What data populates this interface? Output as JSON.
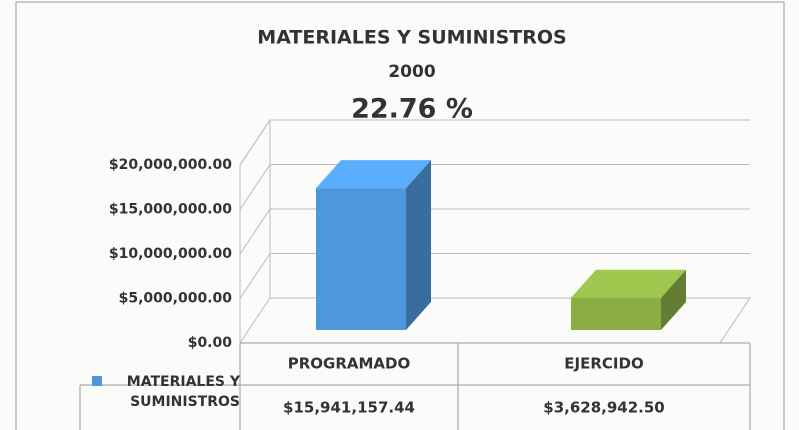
{
  "chart_data": {
    "type": "bar3d",
    "title": "MATERIALES Y SUMINISTROS",
    "subtitle": "2000",
    "annotation": "22.76 %",
    "categories": [
      "PROGRAMADO",
      "EJERCIDO"
    ],
    "series": [
      {
        "name": "MATERIALES Y SUMINISTROS",
        "colors": [
          "#4f97dc",
          "#8aae45"
        ],
        "values": [
          15941157.44,
          3628942.5
        ],
        "value_labels": [
          "$15,941,157.44",
          "$3,628,942.50"
        ]
      }
    ],
    "ylim": [
      0,
      20000000
    ],
    "yticks": [
      {
        "value": 0,
        "label": "$0.00"
      },
      {
        "value": 5000000,
        "label": "$5,000,000.00"
      },
      {
        "value": 10000000,
        "label": "$10,000,000.00"
      },
      {
        "value": 15000000,
        "label": "$15,000,000.00"
      },
      {
        "value": 20000000,
        "label": "$20,000,000.00"
      }
    ],
    "grid": true
  }
}
